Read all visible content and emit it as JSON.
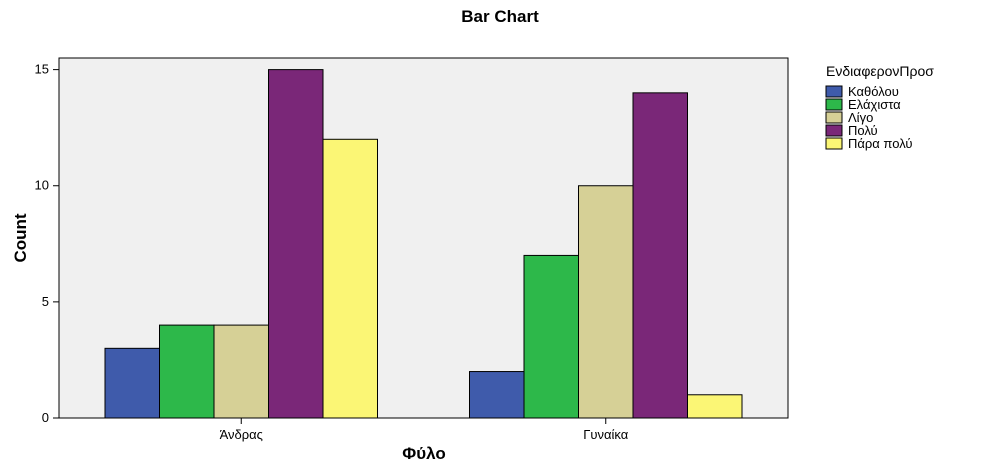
{
  "chart_data": {
    "type": "bar",
    "title": "Bar Chart",
    "xlabel": "Φύλο",
    "ylabel": "Count",
    "categories": [
      "Άνδρας",
      "Γυναίκα"
    ],
    "ylim": [
      0,
      15.5
    ],
    "yticks": [
      0,
      5,
      10,
      15
    ],
    "grid": false,
    "legend_title": "ΕνδιαφερονΠροσ",
    "legend_position": "right",
    "plot_background": "#f0f0f0",
    "series": [
      {
        "name": "Καθόλου",
        "color": "#3f5bab",
        "values": [
          3,
          2
        ]
      },
      {
        "name": "Ελάχιστα",
        "color": "#2db84a",
        "values": [
          4,
          7
        ]
      },
      {
        "name": "Λίγο",
        "color": "#d6d096",
        "values": [
          4,
          10
        ]
      },
      {
        "name": "Πολύ",
        "color": "#7a2778",
        "values": [
          15,
          14
        ]
      },
      {
        "name": "Πάρα πολύ",
        "color": "#fbf675",
        "values": [
          12,
          1
        ]
      }
    ]
  }
}
